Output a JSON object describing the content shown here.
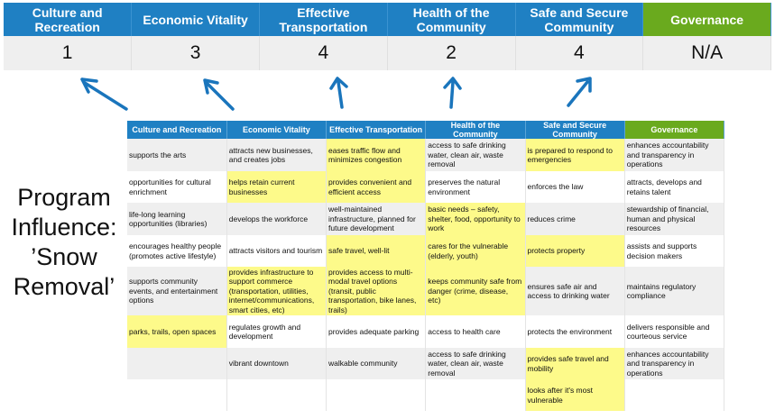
{
  "scores": {
    "headers": [
      "Culture and Recreation",
      "Economic Vitality",
      "Effective Transportation",
      "Health of the Community",
      "Safe and Secure Community",
      "Governance"
    ],
    "values": [
      "1",
      "3",
      "4",
      "2",
      "4",
      "N/A"
    ]
  },
  "program_label": [
    "Program",
    "Influence:",
    "’Snow",
    "Removal’"
  ],
  "colors": {
    "header_blue": "#1f80c3",
    "governance_green": "#6aaa1e",
    "highlight_yellow": "#fdfa8a",
    "arrow_blue": "#1a75bc"
  },
  "table": {
    "headers": [
      "Culture and Recreation",
      "Economic Vitality",
      "Effective Transportation",
      "Health of the Community",
      "Safe and Secure Community",
      "Governance"
    ],
    "rows": [
      [
        {
          "t": "supports the arts",
          "h": false
        },
        {
          "t": "attracts new businesses, and creates jobs",
          "h": false
        },
        {
          "t": "eases traffic flow and minimizes congestion",
          "h": true
        },
        {
          "t": "access to safe drinking water, clean air, waste removal",
          "h": false
        },
        {
          "t": "is prepared to respond to emergencies",
          "h": true
        },
        {
          "t": "enhances accountability and transparency in operations",
          "h": false
        }
      ],
      [
        {
          "t": "opportunities for cultural enrichment",
          "h": false
        },
        {
          "t": "helps retain current businesses",
          "h": true
        },
        {
          "t": "provides convenient and efficient access",
          "h": true
        },
        {
          "t": "preserves the natural environment",
          "h": false
        },
        {
          "t": "enforces the law",
          "h": false
        },
        {
          "t": "attracts, develops and retains talent",
          "h": false
        }
      ],
      [
        {
          "t": "life-long learning opportunities (libraries)",
          "h": false
        },
        {
          "t": "develops the workforce",
          "h": false
        },
        {
          "t": "well-maintained infrastructure, planned for future development",
          "h": false
        },
        {
          "t": "basic needs – safety, shelter, food, opportunity to work",
          "h": true
        },
        {
          "t": "reduces crime",
          "h": false
        },
        {
          "t": "stewardship of financial, human and physical resources",
          "h": false
        }
      ],
      [
        {
          "t": "encourages healthy people (promotes active lifestyle)",
          "h": false
        },
        {
          "t": "attracts visitors and tourism",
          "h": false
        },
        {
          "t": "safe travel, well-lit",
          "h": true
        },
        {
          "t": "cares for the vulnerable (elderly, youth)",
          "h": true
        },
        {
          "t": "protects property",
          "h": true
        },
        {
          "t": "assists and supports decision makers",
          "h": false
        }
      ],
      [
        {
          "t": "supports community events, and entertainment options",
          "h": false
        },
        {
          "t": "provides infrastructure to support commerce (transportation, utilities, internet/communications, smart cities, etc)",
          "h": true
        },
        {
          "t": "provides access to multi-modal travel options (transit, public transportation, bike lanes, trails)",
          "h": true
        },
        {
          "t": "keeps community safe from danger (crime, disease, etc)",
          "h": true
        },
        {
          "t": "ensures safe air and access to drinking water",
          "h": false
        },
        {
          "t": "maintains regulatory compliance",
          "h": false
        }
      ],
      [
        {
          "t": "parks, trails, open spaces",
          "h": true
        },
        {
          "t": "regulates growth and development",
          "h": false
        },
        {
          "t": "provides adequate parking",
          "h": false
        },
        {
          "t": "access to health care",
          "h": false
        },
        {
          "t": "protects the environment",
          "h": false
        },
        {
          "t": "delivers responsible and courteous service",
          "h": false
        }
      ],
      [
        {
          "t": "",
          "h": false
        },
        {
          "t": "vibrant downtown",
          "h": false
        },
        {
          "t": "walkable community",
          "h": false
        },
        {
          "t": "access to safe drinking water, clean air, waste removal",
          "h": false
        },
        {
          "t": "provides safe travel and mobility",
          "h": true
        },
        {
          "t": "enhances accountability and transparency in operations",
          "h": false
        }
      ],
      [
        {
          "t": "",
          "h": false
        },
        {
          "t": "",
          "h": false
        },
        {
          "t": "",
          "h": false
        },
        {
          "t": "",
          "h": false
        },
        {
          "t": "looks after it's most vulnerable",
          "h": true
        },
        {
          "t": "",
          "h": false
        }
      ]
    ]
  }
}
